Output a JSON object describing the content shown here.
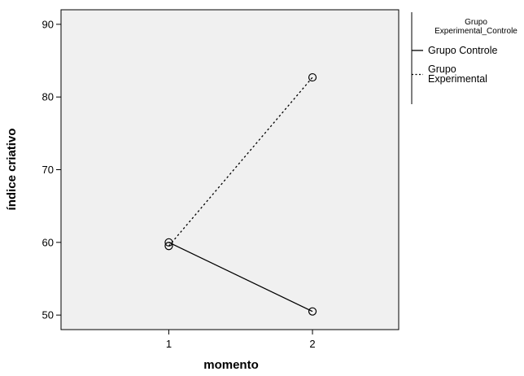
{
  "chart_data": {
    "type": "line",
    "title": "",
    "xlabel": "momento",
    "ylabel": "índice criativo",
    "categories": [
      "1",
      "2"
    ],
    "x": [
      1,
      2
    ],
    "xlim": [
      0.25,
      2.6
    ],
    "ylim": [
      48,
      92
    ],
    "yticks": [
      50,
      60,
      70,
      80,
      90
    ],
    "xticks": [
      1,
      2
    ],
    "grid": false,
    "legend": {
      "title_lines": [
        "Grupo",
        "Experimental_Controle"
      ],
      "placement": "right"
    },
    "series": [
      {
        "name_lines": [
          "Grupo Controle"
        ],
        "values": [
          60,
          50.5
        ],
        "line_style": "solid",
        "marker": "open-circle",
        "color": "#000000"
      },
      {
        "name_lines": [
          "Grupo",
          "Experimental"
        ],
        "values": [
          59.5,
          82.7
        ],
        "line_style": "dotted",
        "marker": "open-circle",
        "color": "#000000"
      }
    ],
    "plot_background": "#f0f0f0"
  }
}
